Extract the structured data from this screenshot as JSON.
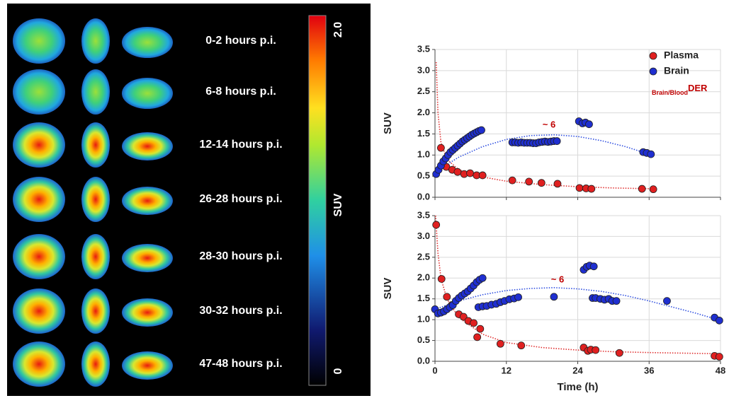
{
  "scan_panel": {
    "labels": [
      "0-2 hours p.i.",
      "6-8 hours p.i.",
      "12-14 hours p.i.",
      "26-28 hours p.i.",
      "28-30 hours p.i.",
      "30-32 hours p.i.",
      "47-48 hours p.i."
    ],
    "colorbar": {
      "label": "SUV",
      "range": [
        0,
        2
      ],
      "ticks": [
        {
          "value": 2,
          "label": "2.0"
        },
        0
      ]
    }
  },
  "chart_data": [
    {
      "type": "scatter",
      "ylabel": "SUV",
      "xlim": [
        0,
        48
      ],
      "xticks": [
        0,
        12,
        24,
        36,
        48
      ],
      "x_tick_labels": false,
      "ylim": [
        0,
        3.5
      ],
      "yticks": [
        {
          "value": 0,
          "label": "0.0"
        },
        0.5,
        {
          "value": 1,
          "label": "1.0"
        },
        1.5,
        {
          "value": 2,
          "label": "2.0"
        },
        2.5,
        {
          "value": 3,
          "label": "3.0"
        },
        3.5
      ],
      "grid": true,
      "legend": "top-right",
      "series": [
        {
          "name": "Plasma",
          "color": "#e02020",
          "x": [
            1,
            1.9,
            2.9,
            3.8,
            4.9,
            5.9,
            7,
            8,
            13,
            15.8,
            17.9,
            20.6,
            24.3,
            25.4,
            26.3,
            34.8,
            36.7
          ],
          "values": [
            1.17,
            0.72,
            0.65,
            0.6,
            0.55,
            0.57,
            0.52,
            0.52,
            0.4,
            0.37,
            0.34,
            0.32,
            0.22,
            0.21,
            0.2,
            0.2,
            0.19
          ]
        },
        {
          "name": "Brain",
          "color": "#1f2fd0",
          "x": [
            0.2,
            0.6,
            1,
            1.4,
            1.8,
            2.2,
            2.6,
            3,
            3.4,
            3.8,
            4.2,
            4.6,
            5,
            5.4,
            5.8,
            6.2,
            6.6,
            7,
            7.4,
            7.8,
            13,
            13.5,
            14,
            14.5,
            15,
            15.5,
            16,
            16.5,
            17,
            17.5,
            18,
            18.5,
            19,
            19.5,
            20,
            20.5,
            24.2,
            24.8,
            25.3,
            25.9,
            35,
            35.6,
            36.3
          ],
          "values": [
            0.55,
            0.65,
            0.75,
            0.85,
            0.92,
            1,
            1.07,
            1.12,
            1.17,
            1.22,
            1.27,
            1.32,
            1.36,
            1.4,
            1.44,
            1.48,
            1.51,
            1.54,
            1.57,
            1.59,
            1.3,
            1.3,
            1.29,
            1.3,
            1.29,
            1.29,
            1.29,
            1.28,
            1.28,
            1.3,
            1.31,
            1.32,
            1.31,
            1.32,
            1.33,
            1.33,
            1.8,
            1.75,
            1.77,
            1.73,
            1.07,
            1.05,
            1.02
          ]
        }
      ],
      "fits": [
        {
          "color": "#e03030",
          "x": [
            0.2,
            0.5,
            1,
            2,
            4,
            8,
            12,
            18,
            24,
            30,
            37
          ],
          "values": [
            3.2,
            2,
            1.3,
            0.9,
            0.65,
            0.48,
            0.38,
            0.3,
            0.25,
            0.22,
            0.2
          ]
        },
        {
          "color": "#2f4fe0",
          "x": [
            0,
            4,
            8,
            12,
            16,
            20,
            24,
            28,
            32,
            36
          ],
          "values": [
            0.6,
            0.95,
            1.2,
            1.37,
            1.46,
            1.48,
            1.44,
            1.34,
            1.2,
            1.02
          ]
        }
      ],
      "annotations": [
        "~ 6"
      ],
      "ratio_label": {
        "subscript": "Brain/Blood",
        "text": "DER"
      }
    },
    {
      "type": "scatter",
      "ylabel": "SUV",
      "xlabel": "Time (h)",
      "xlim": [
        0,
        48
      ],
      "xticks": [
        0,
        12,
        24,
        36,
        48
      ],
      "x_tick_labels": true,
      "ylim": [
        0,
        3.5
      ],
      "yticks": [
        {
          "value": 0,
          "label": "0.0"
        },
        0.5,
        {
          "value": 1,
          "label": "1.0"
        },
        1.5,
        {
          "value": 2,
          "label": "2.0"
        },
        2.5,
        {
          "value": 3,
          "label": "3.0"
        },
        3.5
      ],
      "grid": true,
      "series": [
        {
          "color": "#e02020",
          "x": [
            0.2,
            1.1,
            2,
            2.8,
            4,
            4.8,
            5.6,
            6.5,
            7.1,
            7.6,
            11,
            14.5,
            25,
            25.7,
            26.2,
            27,
            31,
            47,
            47.8
          ],
          "values": [
            3.28,
            1.98,
            1.55,
            1.35,
            1.13,
            1.07,
            0.97,
            0.92,
            0.58,
            0.78,
            0.42,
            0.38,
            0.33,
            0.25,
            0.28,
            0.27,
            0.2,
            0.13,
            0.11
          ]
        },
        {
          "color": "#1f2fd0",
          "x": [
            0,
            0.5,
            1,
            1.5,
            2,
            2.5,
            3,
            3.5,
            4,
            4.5,
            5,
            5.5,
            6,
            6.5,
            7,
            7.5,
            8,
            7.3,
            8,
            8.7,
            9.5,
            10.3,
            11,
            11.7,
            12.5,
            13.3,
            14,
            20,
            25,
            25.5,
            26,
            26.7,
            26.5,
            27,
            27.8,
            28.5,
            29.2,
            29.8,
            30.5,
            39,
            47,
            47.8
          ],
          "values": [
            1.25,
            1.15,
            1.17,
            1.2,
            1.25,
            1.3,
            1.35,
            1.45,
            1.52,
            1.58,
            1.63,
            1.68,
            1.75,
            1.82,
            1.9,
            1.96,
            2,
            1.3,
            1.32,
            1.33,
            1.36,
            1.38,
            1.42,
            1.45,
            1.49,
            1.51,
            1.54,
            1.55,
            2.2,
            2.27,
            2.3,
            2.28,
            1.52,
            1.52,
            1.5,
            1.48,
            1.5,
            1.45,
            1.45,
            1.45,
            1.05,
            0.98
          ]
        }
      ],
      "fits": [
        {
          "color": "#e03030",
          "x": [
            0.1,
            0.5,
            1,
            2,
            4,
            8,
            12,
            18,
            24,
            30,
            36,
            48
          ],
          "values": [
            3.5,
            2.6,
            2,
            1.5,
            1.05,
            0.65,
            0.45,
            0.33,
            0.27,
            0.23,
            0.21,
            0.18
          ]
        },
        {
          "color": "#2f4fe0",
          "x": [
            0,
            4,
            8,
            12,
            16,
            20,
            24,
            28,
            32,
            36,
            40,
            44,
            48
          ],
          "values": [
            1.25,
            1.45,
            1.6,
            1.7,
            1.75,
            1.77,
            1.74,
            1.68,
            1.58,
            1.45,
            1.3,
            1.15,
            0.98
          ]
        }
      ],
      "annotations": [
        "~ 6"
      ]
    }
  ]
}
